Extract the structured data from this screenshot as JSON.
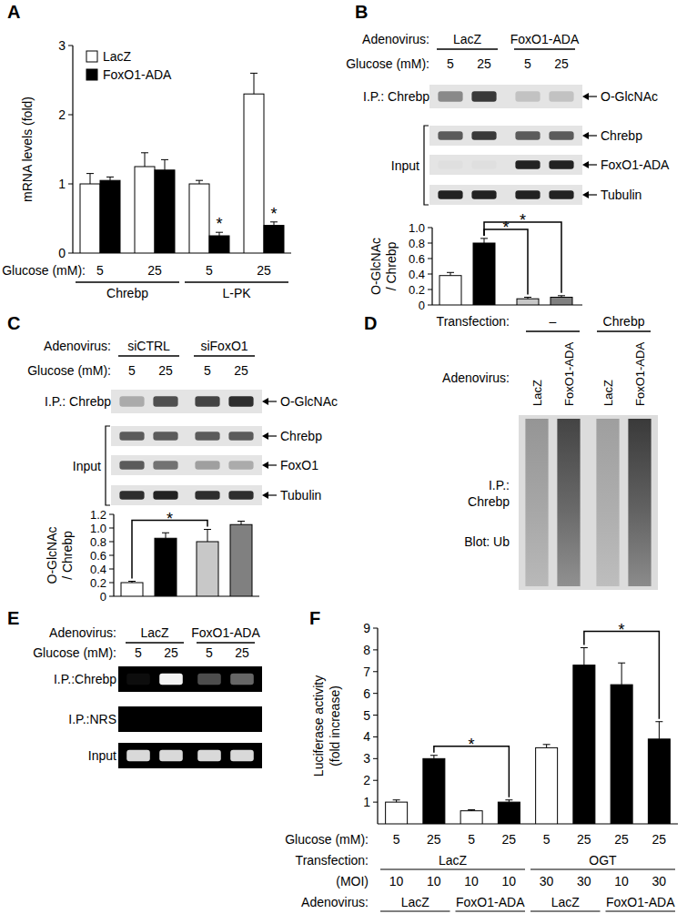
{
  "panel_labels": [
    "A",
    "B",
    "C",
    "D",
    "E",
    "F"
  ],
  "chart_data": [
    {
      "type": "bar",
      "categories": [
        "5",
        "25",
        "5",
        "25"
      ],
      "x_label": "Glucose (mM):",
      "y_label": [
        "mRNA levels (fold)"
      ],
      "ylim": [
        0,
        3
      ],
      "yticks": [
        0,
        1,
        2,
        3
      ],
      "legend": "top-left",
      "series": [
        {
          "name": "LacZ",
          "color": "#ffffff",
          "values": [
            1.0,
            1.25,
            1.0,
            2.3
          ],
          "errors": [
            0.15,
            0.2,
            0.05,
            0.3
          ]
        },
        {
          "name": "FoxO1-ADA",
          "color": "#000000",
          "values": [
            1.05,
            1.2,
            0.25,
            0.4
          ],
          "errors": [
            0.05,
            0.15,
            0.05,
            0.05
          ]
        }
      ],
      "category_groups": [
        {
          "text": "Chrebp",
          "span": [
            0,
            1
          ]
        },
        {
          "text": "L-PK",
          "span": [
            2,
            3
          ]
        }
      ],
      "annotations": [
        {
          "text": "*",
          "series": 1,
          "index": 2
        },
        {
          "text": "*",
          "series": 1,
          "index": 3
        }
      ]
    },
    {
      "type": "bar",
      "categories": [
        null,
        null,
        null,
        null
      ],
      "y_label": [
        "O-GlcNAc",
        "/ Chrebp"
      ],
      "ylim": [
        0,
        1.0
      ],
      "yticks": [
        0,
        0.2,
        0.4,
        0.6,
        0.8,
        {
          "value": 1.0,
          "label": "1.0"
        }
      ],
      "values": [
        0.38,
        0.8,
        0.08,
        0.1
      ],
      "errors": [
        0.04,
        0.06,
        0.02,
        0.02
      ],
      "colors": [
        "#ffffff",
        "#000000",
        "#c8c8c8",
        "#808080"
      ],
      "annotations": [
        {
          "text": "*",
          "from": 1,
          "to": 2
        },
        {
          "text": "*",
          "from": 1,
          "to": 3
        }
      ]
    },
    {
      "type": "bar",
      "categories": [
        null,
        null,
        null,
        null
      ],
      "y_label": [
        "O-GlcNAc",
        "/ Chrebp"
      ],
      "ylim": [
        0,
        1.2
      ],
      "yticks": [
        0,
        0.2,
        0.4,
        0.6,
        0.8,
        {
          "value": 1.0,
          "label": "1.0"
        },
        1.2
      ],
      "values": [
        0.2,
        0.85,
        0.8,
        1.05
      ],
      "errors": [
        0.02,
        0.08,
        0.18,
        0.05
      ],
      "colors": [
        "#ffffff",
        "#000000",
        "#c8c8c8",
        "#808080"
      ],
      "annotations": [
        {
          "text": "*",
          "from": 0,
          "to": 2
        }
      ]
    },
    {
      "type": "bar",
      "categories": [
        "5",
        "25",
        "5",
        "25",
        "5",
        "25",
        "25",
        "25"
      ],
      "x_label": "Glucose (mM):",
      "y_label": [
        "Luciferase activity",
        "(fold increase)"
      ],
      "ylim": [
        0,
        9
      ],
      "yticks": [
        1,
        2,
        3,
        4,
        5,
        6,
        7,
        8,
        9
      ],
      "values": [
        1.0,
        3.0,
        0.6,
        1.0,
        3.5,
        7.3,
        6.4,
        3.9
      ],
      "errors": [
        0.1,
        0.15,
        0.05,
        0.1,
        0.15,
        0.8,
        1.0,
        0.8
      ],
      "colors": [
        "#ffffff",
        "#000000",
        "#ffffff",
        "#000000",
        "#ffffff",
        "#000000",
        "#000000",
        "#000000"
      ],
      "annotations": [
        {
          "text": "*",
          "from": 1,
          "to": 3
        },
        {
          "text": "*",
          "from": 5,
          "to": 7
        }
      ],
      "x_rows": [
        {
          "label": "Transfection:",
          "items": [
            {
              "text": "LacZ",
              "span": [
                0,
                3
              ]
            },
            {
              "text": "OGT",
              "span": [
                4,
                7
              ]
            }
          ]
        },
        {
          "label": "(MOI)",
          "items": [
            {
              "text": "10",
              "span": [
                0,
                0
              ]
            },
            {
              "text": "10",
              "span": [
                1,
                1
              ]
            },
            {
              "text": "10",
              "span": [
                2,
                2
              ]
            },
            {
              "text": "10",
              "span": [
                3,
                3
              ]
            },
            {
              "text": "30",
              "span": [
                4,
                4
              ]
            },
            {
              "text": "30",
              "span": [
                5,
                5
              ]
            },
            {
              "text": "10",
              "span": [
                6,
                6
              ]
            },
            {
              "text": "30",
              "span": [
                7,
                7
              ]
            }
          ]
        },
        {
          "label": "Adenovirus:",
          "items": [
            {
              "text": "LacZ",
              "span": [
                0,
                1
              ]
            },
            {
              "text": "FoxO1-ADA",
              "span": [
                2,
                3
              ]
            },
            {
              "text": "LacZ",
              "span": [
                4,
                5
              ]
            },
            {
              "text": "FoxO1-ADA",
              "span": [
                6,
                7
              ]
            }
          ]
        }
      ]
    }
  ],
  "blots": {
    "B": {
      "header": [
        {
          "label": "Adenovirus:",
          "items": [
            {
              "text": "LacZ",
              "span": [
                0,
                1
              ]
            },
            {
              "text": "FoxO1-ADA",
              "span": [
                2,
                3
              ]
            }
          ]
        },
        {
          "label": "Glucose (mM):",
          "items": [
            {
              "text": "5",
              "span": [
                0,
                0
              ]
            },
            {
              "text": "25",
              "span": [
                1,
                1
              ]
            },
            {
              "text": "5",
              "span": [
                2,
                2
              ]
            },
            {
              "text": "25",
              "span": [
                3,
                3
              ]
            }
          ]
        }
      ],
      "rows": [
        {
          "label": "I.P.: Chrebp",
          "right": "O-GlcNAc",
          "bands": [
            0.4,
            0.75,
            0.15,
            0.15
          ]
        },
        {
          "right": "Chrebp",
          "bands": [
            0.6,
            0.75,
            0.6,
            0.6
          ]
        },
        {
          "right": "FoxO1-ADA",
          "bands": [
            0.02,
            0.02,
            0.85,
            0.85
          ]
        },
        {
          "right": "Tubulin",
          "bands": [
            0.85,
            0.85,
            0.85,
            0.85
          ]
        }
      ],
      "group": {
        "text": "Input",
        "rows": [
          1,
          3
        ]
      }
    },
    "C": {
      "header": [
        {
          "label": "Adenovirus:",
          "items": [
            {
              "text": "siCTRL",
              "span": [
                0,
                1
              ]
            },
            {
              "text": "siFoxO1",
              "span": [
                2,
                3
              ]
            }
          ]
        },
        {
          "label": "Glucose (mM):",
          "items": [
            {
              "text": "5",
              "span": [
                0,
                0
              ]
            },
            {
              "text": "25",
              "span": [
                1,
                1
              ]
            },
            {
              "text": "5",
              "span": [
                2,
                2
              ]
            },
            {
              "text": "25",
              "span": [
                3,
                3
              ]
            }
          ]
        }
      ],
      "rows": [
        {
          "label": "I.P.: Chrebp",
          "right": "O-GlcNAc",
          "bands": [
            0.25,
            0.65,
            0.7,
            0.8
          ]
        },
        {
          "right": "Chrebp",
          "bands": [
            0.6,
            0.6,
            0.6,
            0.6
          ]
        },
        {
          "right": "FoxO1",
          "bands": [
            0.6,
            0.5,
            0.3,
            0.25
          ]
        },
        {
          "right": "Tubulin",
          "bands": [
            0.8,
            0.85,
            0.8,
            0.8
          ]
        }
      ],
      "group": {
        "text": "Input",
        "rows": [
          1,
          3
        ]
      }
    },
    "D": {
      "header": [
        {
          "label": "Transfection:",
          "items": [
            {
              "text": "–",
              "span": [
                0,
                1
              ]
            },
            {
              "text": "Chrebp",
              "span": [
                2,
                3
              ]
            }
          ]
        },
        {
          "label": "Adenovirus:",
          "vertical": true,
          "items": [
            {
              "text": "LacZ",
              "span": [
                0,
                0
              ]
            },
            {
              "text": "FoxO1-ADA",
              "span": [
                1,
                1
              ]
            },
            {
              "text": "LacZ",
              "span": [
                2,
                2
              ]
            },
            {
              "text": "FoxO1-ADA",
              "span": [
                3,
                3
              ]
            }
          ]
        }
      ],
      "labels": [
        "I.P.:",
        "Chrebp",
        "Blot: Ub"
      ],
      "smear": [
        0.35,
        0.75,
        0.3,
        0.8
      ]
    },
    "E": {
      "dark": true,
      "header": [
        {
          "label": "Adenovirus:",
          "items": [
            {
              "text": "LacZ",
              "span": [
                0,
                1
              ]
            },
            {
              "text": "FoxO1-ADA",
              "span": [
                2,
                3
              ]
            }
          ]
        },
        {
          "label": "Glucose (mM):",
          "items": [
            {
              "text": "5",
              "span": [
                0,
                0
              ]
            },
            {
              "text": "25",
              "span": [
                1,
                1
              ]
            },
            {
              "text": "5",
              "span": [
                2,
                2
              ]
            },
            {
              "text": "25",
              "span": [
                3,
                3
              ]
            }
          ]
        }
      ],
      "rows": [
        {
          "label": "I.P.:Chrebp",
          "bands": [
            0.05,
            0.95,
            0.3,
            0.4
          ]
        },
        {
          "label": "I.P.:NRS",
          "bands": [
            0,
            0,
            0,
            0
          ]
        },
        {
          "label": "Input",
          "bands": [
            0.85,
            0.85,
            0.85,
            0.85
          ]
        }
      ]
    }
  }
}
